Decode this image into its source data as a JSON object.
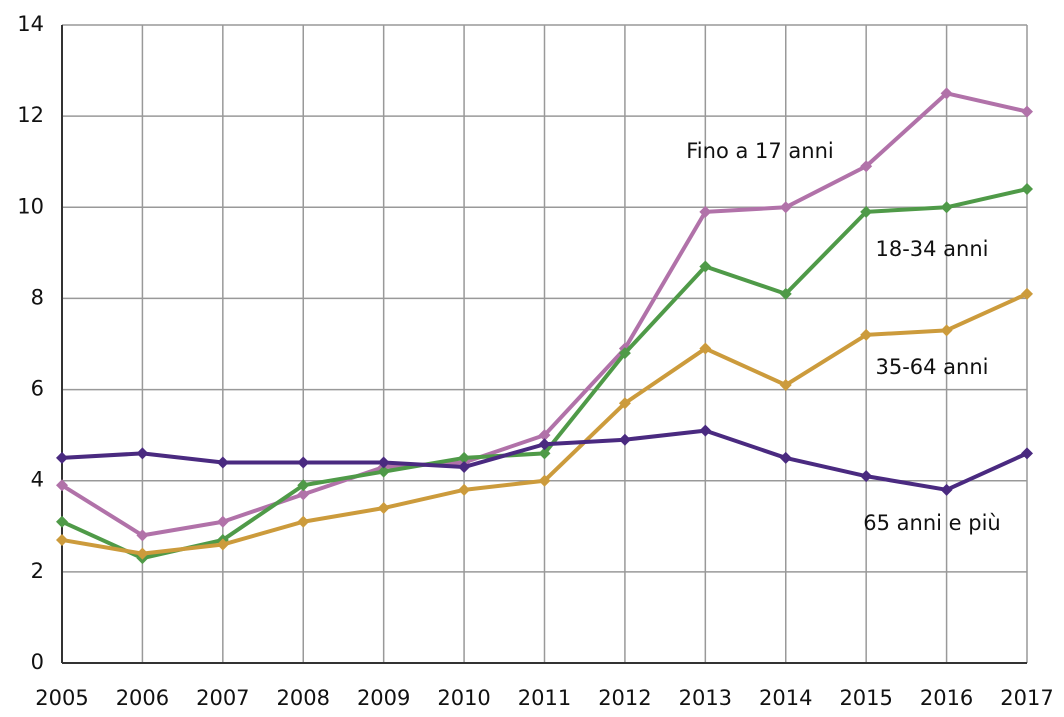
{
  "chart_data": {
    "type": "line",
    "x": [
      2005,
      2006,
      2007,
      2008,
      2009,
      2010,
      2011,
      2012,
      2013,
      2014,
      2015,
      2016,
      2017
    ],
    "xlim": [
      2005,
      2017
    ],
    "xticks": [
      2005,
      2006,
      2007,
      2008,
      2009,
      2010,
      2011,
      2012,
      2013,
      2014,
      2015,
      2016,
      2017
    ],
    "ylim": [
      0,
      14
    ],
    "yticks": [
      0,
      2,
      4,
      6,
      8,
      10,
      12,
      14
    ],
    "grid": true,
    "series": [
      {
        "name": "Fino a 17 anni",
        "color": "#b172a9",
        "values": [
          3.9,
          2.8,
          3.1,
          3.7,
          4.3,
          4.4,
          5.0,
          6.9,
          9.9,
          10.0,
          10.9,
          12.5,
          12.1
        ]
      },
      {
        "name": "18-34 anni",
        "color": "#4f9a48",
        "values": [
          3.1,
          2.3,
          2.7,
          3.9,
          4.2,
          4.5,
          4.6,
          6.8,
          8.7,
          8.1,
          9.9,
          10.0,
          10.4
        ]
      },
      {
        "name": "35-64 anni",
        "color": "#cc9b3c",
        "values": [
          2.7,
          2.4,
          2.6,
          3.1,
          3.4,
          3.8,
          4.0,
          5.7,
          6.9,
          6.1,
          7.2,
          7.3,
          8.1
        ]
      },
      {
        "name": "65 anni e più",
        "color": "#4a2a80",
        "values": [
          4.5,
          4.6,
          4.4,
          4.4,
          4.4,
          4.3,
          4.8,
          4.9,
          5.1,
          4.5,
          4.1,
          3.8,
          4.6
        ]
      }
    ]
  }
}
